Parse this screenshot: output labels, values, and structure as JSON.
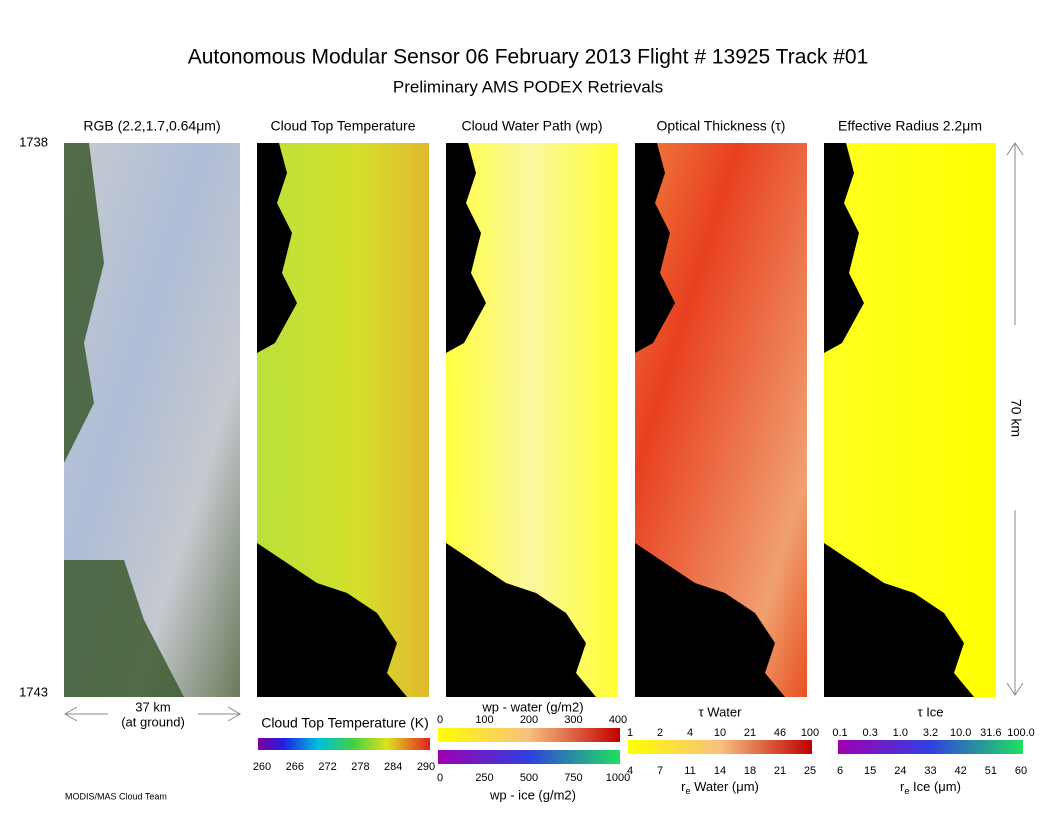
{
  "header": {
    "title": "Autonomous Modular Sensor  06 February 2013  Flight # 13925 Track #01",
    "subtitle": "Preliminary AMS PODEX Retrievals"
  },
  "panels": [
    {
      "title": "RGB (2.2,1.7,0.64μm)",
      "style": "rgb"
    },
    {
      "title": "Cloud Top Temperature",
      "style": "ctt"
    },
    {
      "title": "Cloud Water Path (wp)",
      "style": "cwp"
    },
    {
      "title": "Optical Thickness (τ)",
      "style": "tau"
    },
    {
      "title": "Effective Radius 2.2μm",
      "style": "re"
    }
  ],
  "time_start": "1738",
  "time_end": "1743",
  "scale_across": {
    "distance": "37 km",
    "note": "(at ground)"
  },
  "scale_along": "70 km",
  "colorbars": {
    "ctt": {
      "label": "Cloud Top Temperature (K)",
      "ticks": [
        "260",
        "266",
        "272",
        "278",
        "284",
        "290"
      ]
    },
    "wp": {
      "water_label": "wp - water (g/m2)",
      "water_ticks": [
        "0",
        "100",
        "200",
        "300",
        "400"
      ],
      "ice_label": "wp - ice (g/m2)",
      "ice_ticks": [
        "0",
        "250",
        "500",
        "750",
        "1000"
      ]
    },
    "water": {
      "tau_label": "τ Water",
      "tau_ticks": [
        "1",
        "2",
        "4",
        "10",
        "21",
        "46",
        "100"
      ],
      "re_symbol": "r",
      "re_subscript": "e",
      "re_label": " Water (μm)",
      "re_ticks": [
        "4",
        "7",
        "11",
        "14",
        "18",
        "21",
        "25"
      ]
    },
    "ice": {
      "tau_label": "τ Ice",
      "tau_ticks": [
        "0.1",
        "0.3",
        "1.0",
        "3.2",
        "10.0",
        "31.6",
        "100.0"
      ],
      "re_symbol": "r",
      "re_subscript": "e",
      "re_label": " Ice (μm)",
      "re_ticks": [
        "6",
        "15",
        "24",
        "33",
        "42",
        "51",
        "60"
      ]
    }
  },
  "footer": "MODIS/MAS Cloud Team"
}
